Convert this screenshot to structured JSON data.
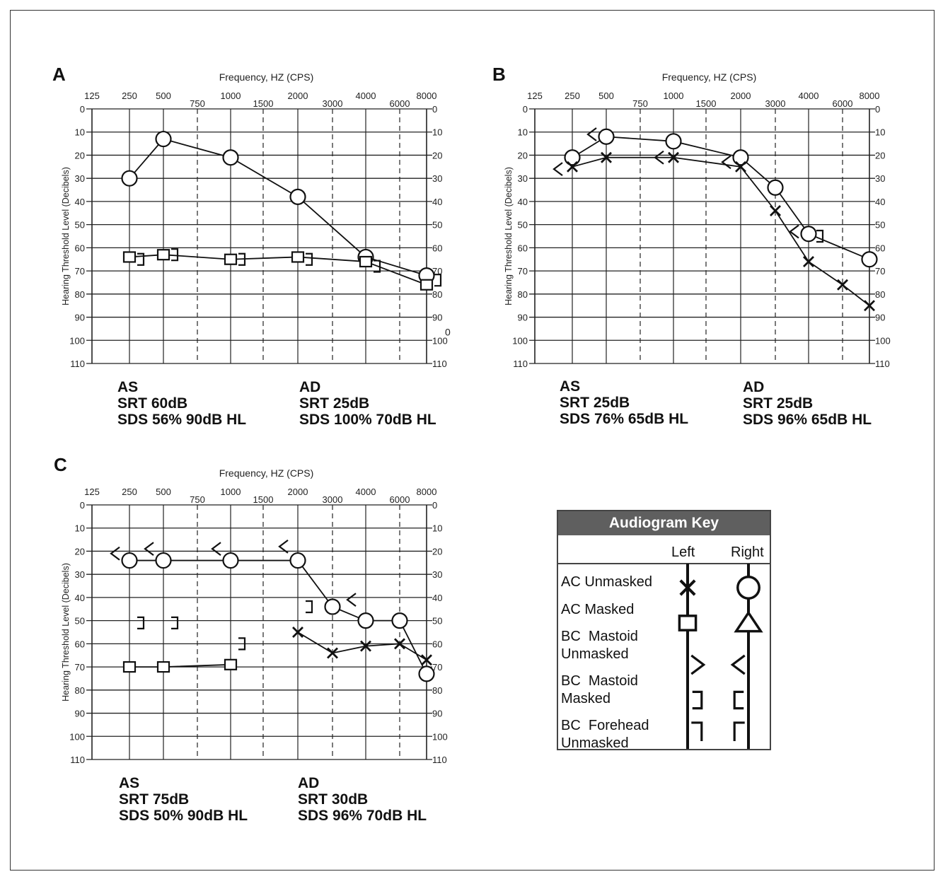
{
  "panel_letters": [
    "A",
    "B",
    "C"
  ],
  "panels": [
    {
      "summary": {
        "left": {
          "ear": "AS",
          "srt": "SRT 60dB",
          "sds": "SDS 56% 90dB HL"
        },
        "right": {
          "ear": "AD",
          "srt": "SRT 25dB",
          "sds": "SDS 100% 70dB HL"
        }
      }
    },
    {
      "summary": {
        "left": {
          "ear": "AS",
          "srt": "SRT 25dB",
          "sds": "SDS 76% 65dB HL"
        },
        "right": {
          "ear": "AD",
          "srt": "SRT 25dB",
          "sds": "SDS 96% 65dB HL"
        }
      }
    },
    {
      "summary": {
        "left": {
          "ear": "AS",
          "srt": "SRT 75dB",
          "sds": "SDS 50% 90dB HL"
        },
        "right": {
          "ear": "AD",
          "srt": "SRT 30dB",
          "sds": "SDS 96% 70dB HL"
        }
      }
    }
  ],
  "chart_data": [
    {
      "type": "line",
      "title": "Frequency, HZ (CPS)",
      "ylabel": "Hearing Threshold Level (Decibels)",
      "x_ticks": [
        "125",
        "250",
        "500",
        "750",
        "1000",
        "1500",
        "2000",
        "3000",
        "4000",
        "6000",
        "8000"
      ],
      "y_ticks": [
        0,
        10,
        20,
        30,
        40,
        50,
        60,
        70,
        80,
        90,
        100,
        110
      ],
      "ylim": [
        0,
        110
      ],
      "y_inverted": true,
      "series": [
        {
          "symbol": "circle",
          "connected": true,
          "x": [
            "250",
            "500",
            "1000",
            "2000",
            "4000",
            "8000"
          ],
          "y": [
            30,
            13,
            21,
            38,
            64,
            72
          ]
        },
        {
          "symbol": "square",
          "connected": true,
          "x": [
            "250",
            "500",
            "1000",
            "2000",
            "4000",
            "8000"
          ],
          "y": [
            64,
            63,
            65,
            64,
            66,
            76
          ]
        },
        {
          "symbol": "right-bracket",
          "connected": false,
          "x": [
            "250",
            "500",
            "1000",
            "2000",
            "4000",
            "8000"
          ],
          "y": [
            65,
            63,
            65,
            65,
            68,
            74
          ]
        }
      ],
      "extra_marks": [
        {
          "x": "8000",
          "y": 98,
          "text": "0"
        }
      ]
    },
    {
      "type": "line",
      "title": "Frequency, HZ (CPS)",
      "ylabel": "Hearing Threshold Level (Decibels)",
      "x_ticks": [
        "125",
        "250",
        "500",
        "750",
        "1000",
        "1500",
        "2000",
        "3000",
        "4000",
        "6000",
        "8000"
      ],
      "y_ticks": [
        0,
        10,
        20,
        30,
        40,
        50,
        60,
        70,
        80,
        90,
        100,
        110
      ],
      "ylim": [
        0,
        110
      ],
      "y_inverted": true,
      "series": [
        {
          "symbol": "circle",
          "connected": true,
          "x": [
            "250",
            "500",
            "1000",
            "2000",
            "3000",
            "4000",
            "8000"
          ],
          "y": [
            21,
            12,
            14,
            21,
            34,
            54,
            65
          ]
        },
        {
          "symbol": "x",
          "connected": true,
          "x": [
            "250",
            "500",
            "1000",
            "2000",
            "3000",
            "4000",
            "6000",
            "8000"
          ],
          "y": [
            25,
            21,
            21,
            25,
            44,
            66,
            76,
            85
          ]
        },
        {
          "symbol": "left-angle",
          "connected": false,
          "x": [
            "250",
            "500",
            "1000",
            "2000",
            "4000"
          ],
          "y": [
            26,
            11,
            21,
            23,
            53
          ]
        },
        {
          "symbol": "right-bracket",
          "connected": false,
          "x": [
            "4000"
          ],
          "y": [
            55
          ]
        }
      ],
      "extra_marks": []
    },
    {
      "type": "line",
      "title": "Frequency, HZ (CPS)",
      "ylabel": "Hearing Threshold Level (Decibels)",
      "x_ticks": [
        "125",
        "250",
        "500",
        "750",
        "1000",
        "1500",
        "2000",
        "3000",
        "4000",
        "6000",
        "8000"
      ],
      "y_ticks": [
        0,
        10,
        20,
        30,
        40,
        50,
        60,
        70,
        80,
        90,
        100,
        110
      ],
      "ylim": [
        0,
        110
      ],
      "y_inverted": true,
      "series": [
        {
          "symbol": "circle",
          "connected": true,
          "x": [
            "250",
            "500",
            "1000",
            "2000",
            "3000",
            "4000",
            "6000",
            "8000"
          ],
          "y": [
            24,
            24,
            24,
            24,
            44,
            50,
            50,
            73
          ]
        },
        {
          "symbol": "square",
          "connected": true,
          "x": [
            "250",
            "500",
            "1000"
          ],
          "y": [
            70,
            70,
            69
          ]
        },
        {
          "symbol": "x",
          "connected": true,
          "x": [
            "2000",
            "3000",
            "4000",
            "6000",
            "8000"
          ],
          "y": [
            55,
            64,
            61,
            60,
            67
          ]
        },
        {
          "symbol": "left-angle",
          "connected": false,
          "x": [
            "250",
            "500",
            "1000",
            "2000",
            "4000"
          ],
          "y": [
            21,
            19,
            19,
            18,
            41
          ]
        },
        {
          "symbol": "right-bracket",
          "connected": false,
          "x": [
            "250",
            "500",
            "1000",
            "2000"
          ],
          "y": [
            51,
            51,
            60,
            44
          ]
        }
      ],
      "extra_marks": []
    }
  ],
  "key": {
    "title": "Audiogram Key",
    "col_left": "Left",
    "col_right": "Right",
    "rows": [
      {
        "label": "AC Unmasked",
        "left": "x",
        "right": "circle"
      },
      {
        "label": "AC Masked",
        "left": "square",
        "right": "triangle"
      },
      {
        "label": "BC  Mastoid\nUnmasked",
        "left": "right-angle",
        "right": "left-angle"
      },
      {
        "label": "BC  Mastoid\nMasked",
        "left": "right-bracket",
        "right": "left-bracket"
      },
      {
        "label": "BC  Forehead\nUnmasked",
        "left": "right-corner",
        "right": "left-corner"
      }
    ]
  }
}
